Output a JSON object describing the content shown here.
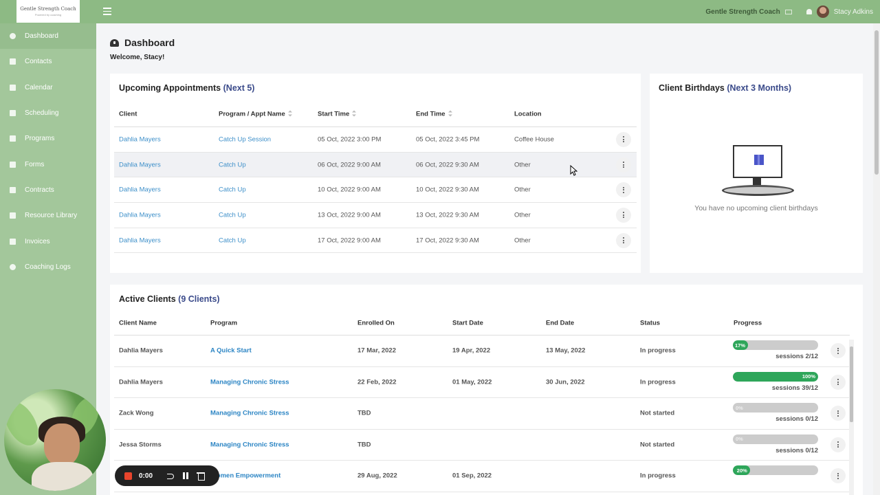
{
  "brand": {
    "logo_title": "Gentle Strength Coach",
    "logo_tagline": "Powered by coaching"
  },
  "header": {
    "business_name": "Gentle Strength Coach",
    "user_name": "Stacy Adkins"
  },
  "sidebar": {
    "items": [
      {
        "label": "Dashboard",
        "icon": "gauge-icon"
      },
      {
        "label": "Contacts",
        "icon": "contacts-icon"
      },
      {
        "label": "Calendar",
        "icon": "calendar-icon"
      },
      {
        "label": "Scheduling",
        "icon": "scheduling-icon"
      },
      {
        "label": "Programs",
        "icon": "book-icon"
      },
      {
        "label": "Forms",
        "icon": "forms-icon"
      },
      {
        "label": "Contracts",
        "icon": "signature-icon"
      },
      {
        "label": "Resource Library",
        "icon": "library-icon"
      },
      {
        "label": "Invoices",
        "icon": "invoice-icon"
      },
      {
        "label": "Coaching Logs",
        "icon": "clock-icon"
      }
    ]
  },
  "page": {
    "title": "Dashboard",
    "welcome": "Welcome, Stacy!"
  },
  "appointments": {
    "title": "Upcoming Appointments",
    "title_suffix": "(Next 5)",
    "columns": [
      "Client",
      "Program / Appt Name",
      "Start Time",
      "End Time",
      "Location"
    ],
    "rows": [
      {
        "client": "Dahlia Mayers",
        "program": "Catch Up Session",
        "start": "05 Oct, 2022 3:00 PM",
        "end": "05 Oct, 2022 3:45 PM",
        "location": "Coffee House"
      },
      {
        "client": "Dahlia Mayers",
        "program": "Catch Up",
        "start": "06 Oct, 2022 9:00 AM",
        "end": "06 Oct, 2022 9:30 AM",
        "location": "Other"
      },
      {
        "client": "Dahlia Mayers",
        "program": "Catch Up",
        "start": "10 Oct, 2022 9:00 AM",
        "end": "10 Oct, 2022 9:30 AM",
        "location": "Other"
      },
      {
        "client": "Dahlia Mayers",
        "program": "Catch Up",
        "start": "13 Oct, 2022 9:00 AM",
        "end": "13 Oct, 2022 9:30 AM",
        "location": "Other"
      },
      {
        "client": "Dahlia Mayers",
        "program": "Catch Up",
        "start": "17 Oct, 2022 9:00 AM",
        "end": "17 Oct, 2022 9:30 AM",
        "location": "Other"
      }
    ]
  },
  "birthdays": {
    "title": "Client Birthdays",
    "title_suffix": "(Next 3 Months)",
    "empty_message": "You have no upcoming client birthdays"
  },
  "clients": {
    "title": "Active Clients",
    "title_suffix": "(9 Clients)",
    "columns": [
      "Client Name",
      "Program",
      "Enrolled On",
      "Start Date",
      "End Date",
      "Status",
      "Progress"
    ],
    "rows": [
      {
        "name": "Dahlia Mayers",
        "program": "A Quick Start",
        "enrolled": "17 Mar, 2022",
        "start": "19 Apr, 2022",
        "end": "13 May, 2022",
        "status": "In progress",
        "progress_label": "17%",
        "progress": 17,
        "sessions": "sessions 2/12"
      },
      {
        "name": "Dahlia Mayers",
        "program": "Managing Chronic Stress",
        "enrolled": "22 Feb, 2022",
        "start": "01 May, 2022",
        "end": "30 Jun, 2022",
        "status": "In progress",
        "progress_label": "100%",
        "progress": 100,
        "sessions": "sessions 39/12"
      },
      {
        "name": "Zack Wong",
        "program": "Managing Chronic Stress",
        "enrolled": "TBD",
        "start": "",
        "end": "",
        "status": "Not started",
        "progress_label": "0%",
        "progress": 0,
        "sessions": "sessions 0/12"
      },
      {
        "name": "Jessa Storms",
        "program": "Managing Chronic Stress",
        "enrolled": "TBD",
        "start": "",
        "end": "",
        "status": "Not started",
        "progress_label": "0%",
        "progress": 0,
        "sessions": "sessions 0/12"
      },
      {
        "name": "",
        "program": "Women Empowerment",
        "enrolled": "29 Aug, 2022",
        "start": "01 Sep, 2022",
        "end": "",
        "status": "In progress",
        "progress_label": "20%",
        "progress": 20,
        "sessions": ""
      }
    ]
  },
  "recorder": {
    "time": "0:00"
  },
  "colors": {
    "header": "#8dba84",
    "sidebar": "#a3c79b",
    "link": "#3d8fc9",
    "progress": "#2ea65a",
    "accent_title": "#3a4a8a"
  }
}
